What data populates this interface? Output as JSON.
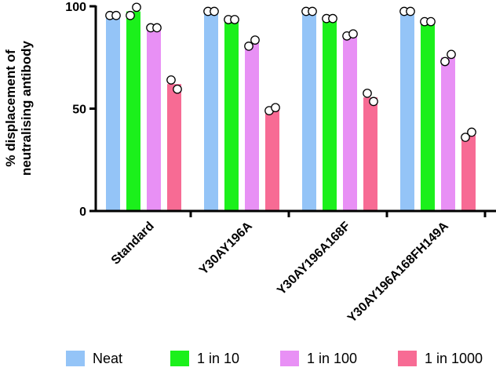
{
  "chart_data": {
    "type": "bar",
    "title": "",
    "xlabel": "",
    "ylabel_lines": [
      "% displacement of",
      "neutralising antibody"
    ],
    "ylim": [
      0,
      100
    ],
    "yticks": [
      0,
      50,
      100
    ],
    "categories": [
      "Standard",
      "Y30AY196A",
      "Y30AY196A168F",
      "Y30AY196A168FH149A"
    ],
    "legend_position": "bottom",
    "series": [
      {
        "name": "Neat",
        "color": "#94c4f7",
        "values": [
          95.5,
          97.5,
          97.5,
          97.5
        ],
        "points": [
          [
            95.5,
            95.5
          ],
          [
            97.5,
            97.5
          ],
          [
            97.5,
            97.5
          ],
          [
            97.5,
            97.5
          ]
        ]
      },
      {
        "name": "1 in 10",
        "color": "#1bf01b",
        "values": [
          97.5,
          93.5,
          94,
          92.5
        ],
        "points": [
          [
            95.5,
            99.5
          ],
          [
            93.5,
            93.5
          ],
          [
            94,
            94
          ],
          [
            92.5,
            92.5
          ]
        ]
      },
      {
        "name": "1 in 100",
        "color": "#e890f5",
        "values": [
          89.5,
          82,
          86,
          75
        ],
        "points": [
          [
            89.5,
            89.5
          ],
          [
            80.5,
            83.5
          ],
          [
            85.5,
            86.5
          ],
          [
            73,
            76.5
          ]
        ]
      },
      {
        "name": "1 in 1000",
        "color": "#f76b94",
        "values": [
          62,
          49.5,
          55.5,
          37
        ],
        "points": [
          [
            64,
            59.5
          ],
          [
            49,
            50.5
          ],
          [
            57.5,
            53.5
          ],
          [
            36,
            38.5
          ]
        ]
      }
    ]
  }
}
